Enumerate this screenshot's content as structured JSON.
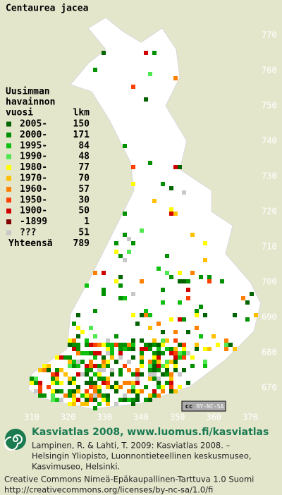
{
  "title": "Centaurea jacea",
  "legend": {
    "title": [
      "Uusimman",
      "havainnon",
      "vuosi"
    ],
    "count_header": "lkm",
    "items": [
      {
        "label": "2005-",
        "count": 150,
        "color": "#006400"
      },
      {
        "label": "2000-",
        "count": 171,
        "color": "#009000"
      },
      {
        "label": "1995-",
        "count": 84,
        "color": "#10c010"
      },
      {
        "label": "1990-",
        "count": 48,
        "color": "#50e850"
      },
      {
        "label": "1980-",
        "count": 77,
        "color": "#ffff00"
      },
      {
        "label": "1970-",
        "count": 70,
        "color": "#ffc000"
      },
      {
        "label": "1960-",
        "count": 57,
        "color": "#ff8000"
      },
      {
        "label": "1950-",
        "count": 30,
        "color": "#ff4000"
      },
      {
        "label": "1900-",
        "count": 50,
        "color": "#d00000"
      },
      {
        "label": "-1899",
        "count": 1,
        "color": "#800000"
      },
      {
        "label": "???",
        "count": 51,
        "color": "#c8c8c8"
      }
    ],
    "total_label": "Yhteensä",
    "total": 789
  },
  "x_labels": [
    310,
    320,
    330,
    340,
    350,
    360,
    370
  ],
  "y_labels": [
    770,
    760,
    750,
    740,
    730,
    720,
    710,
    700,
    690,
    680,
    670
  ],
  "badge": [
    "cc",
    "BY-NC-SA"
  ],
  "credit": {
    "heading": "Kasviatlas 2008, www.luomus.fi/kasviatlas",
    "lines": [
      "Lampinen, R. & Lahti, T. 2009: Kasviatlas 2008. –",
      "Helsingin Yliopisto, Luonnontieteellinen keskusmuseo,",
      "Kasvimuseo, Helsinki."
    ]
  },
  "license": [
    "Creative Commons Nimeä-Epäkaupallinen-Tarttuva 1.0 Suomi",
    "http://creativecommons.org/licenses/by-nc-sa/1.0/fi"
  ]
}
